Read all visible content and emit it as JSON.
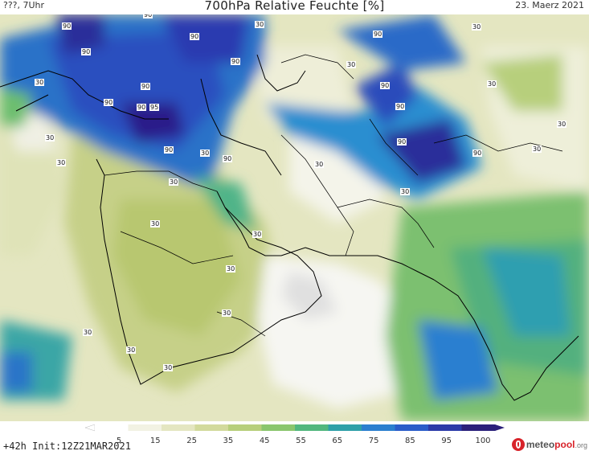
{
  "header": {
    "left": "???, 7Uhr",
    "title": "700hPa Relative Feuchte [%]",
    "right": "23. Maerz 2021"
  },
  "footer": {
    "run_info": "+42h Init:12Z21MAR2021",
    "brand_main": "meteo",
    "brand_accent": "pool",
    "brand_suffix": ".org"
  },
  "colorbar": {
    "ticks": [
      "5",
      "15",
      "25",
      "35",
      "45",
      "55",
      "65",
      "75",
      "85",
      "95",
      "100"
    ],
    "colors": [
      "#ffffff",
      "#f2f2e3",
      "#e4e6c1",
      "#d2da9c",
      "#b7cf7b",
      "#8ac66d",
      "#52b77e",
      "#2ea0a8",
      "#2b7fcf",
      "#2a5cc9",
      "#2b3aa8",
      "#2a1f7a"
    ]
  },
  "map": {
    "contour_labels": [
      "90",
      "90",
      "90",
      "90",
      "90",
      "90",
      "90",
      "90",
      "95",
      "90",
      "90",
      "90",
      "90",
      "90",
      "90",
      "90",
      "90",
      "30",
      "30",
      "30",
      "30",
      "30",
      "30",
      "30",
      "30",
      "30",
      "30",
      "30",
      "30",
      "30",
      "30",
      "30",
      "30",
      "30",
      "30",
      "30",
      "30",
      "30"
    ]
  }
}
